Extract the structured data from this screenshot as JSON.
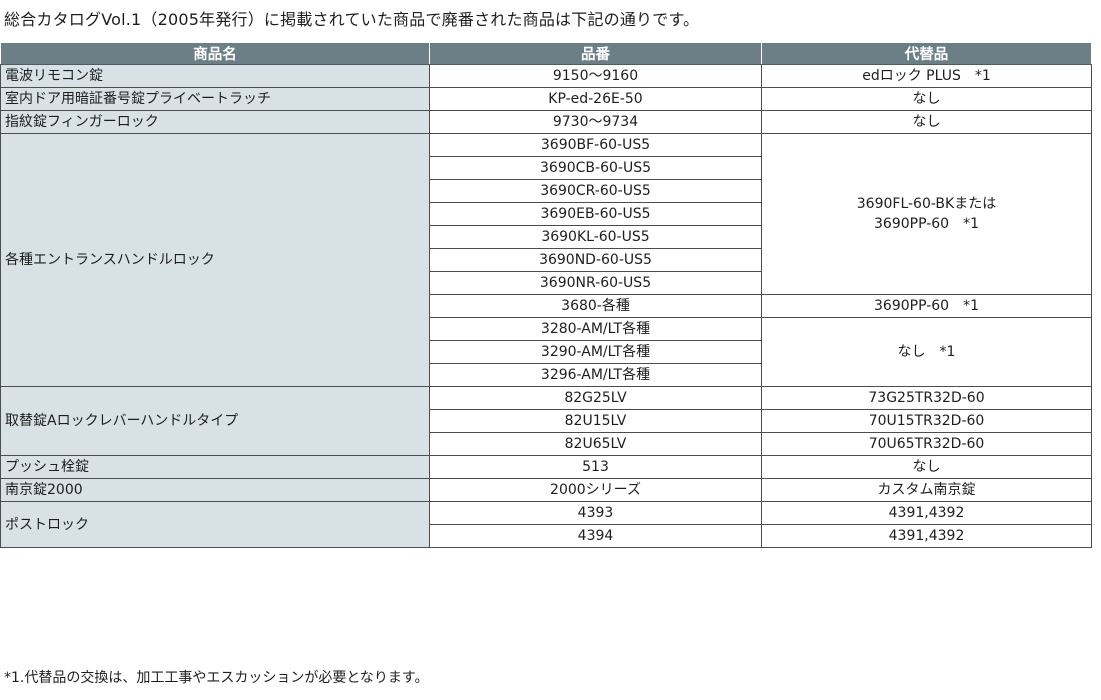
{
  "intro": "総合カタログVol.1（2005年発行）に掲載されていた商品で廃番された商品は下記の通りです。",
  "headers": {
    "name": "商品名",
    "number": "品番",
    "alt": "代替品"
  },
  "rows": {
    "r1": {
      "name": "電波リモコン錠",
      "number": "9150〜9160",
      "alt": "edロック PLUS　*1"
    },
    "r2": {
      "name": "室内ドア用暗証番号錠プライベートラッチ",
      "number": "KP-ed-26E-50",
      "alt": "なし"
    },
    "r3": {
      "name": "指紋錠フィンガーロック",
      "number": "9730〜9734",
      "alt": "なし"
    },
    "r4": {
      "name": "各種エントランスハンドルロック",
      "numbers": [
        "3690BF-60-US5",
        "3690CB-60-US5",
        "3690CR-60-US5",
        "3690EB-60-US5",
        "3690KL-60-US5",
        "3690ND-60-US5",
        "3690NR-60-US5",
        "3680-各種",
        "3280-AM/LT各種",
        "3290-AM/LT各種",
        "3296-AM/LT各種"
      ],
      "alt_a_line1": "3690FL-60-BKまたは",
      "alt_a_line2": "3690PP-60　*1",
      "alt_b": "3690PP-60　*1",
      "alt_c": "なし　*1"
    },
    "r5": {
      "name": "取替錠Aロックレバーハンドルタイプ",
      "numbers": [
        "82G25LV",
        "82U15LV",
        "82U65LV"
      ],
      "alts": [
        "73G25TR32D-60",
        "70U15TR32D-60",
        "70U65TR32D-60"
      ]
    },
    "r6": {
      "name": "プッシュ栓錠",
      "number": "513",
      "alt": "なし"
    },
    "r7": {
      "name": "南京錠2000",
      "number": "2000シリーズ",
      "alt": "カスタム南京錠"
    },
    "r8": {
      "name": "ポストロック",
      "numbers": [
        "4393",
        "4394"
      ],
      "alts": [
        "4391,4392",
        "4391,4392"
      ]
    }
  },
  "footnote": "*1.代替品の交換は、加工工事やエスカッションが必要となります。"
}
